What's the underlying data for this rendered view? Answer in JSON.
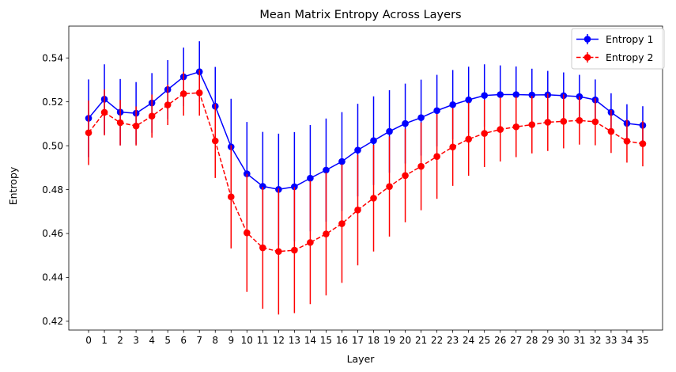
{
  "chart_data": {
    "type": "line",
    "title": "Mean Matrix Entropy Across Layers",
    "xlabel": "Layer",
    "ylabel": "Entropy",
    "ylim": [
      0.416,
      0.5545
    ],
    "yticks": [
      0.42,
      0.44,
      0.46,
      0.48,
      0.5,
      0.52,
      0.54
    ],
    "ytick_labels": [
      "0.42",
      "0.44",
      "0.46",
      "0.48",
      "0.50",
      "0.52",
      "0.54"
    ],
    "x": [
      0,
      1,
      2,
      3,
      4,
      5,
      6,
      7,
      8,
      9,
      10,
      11,
      12,
      13,
      14,
      15,
      16,
      17,
      18,
      19,
      20,
      21,
      22,
      23,
      24,
      25,
      26,
      27,
      28,
      29,
      30,
      31,
      32,
      33,
      34,
      35
    ],
    "xtick_labels": [
      "0",
      "1",
      "2",
      "3",
      "4",
      "5",
      "6",
      "7",
      "8",
      "9",
      "10",
      "11",
      "12",
      "13",
      "14",
      "15",
      "16",
      "17",
      "18",
      "19",
      "20",
      "21",
      "22",
      "23",
      "24",
      "25",
      "26",
      "27",
      "28",
      "29",
      "30",
      "31",
      "32",
      "33",
      "34",
      "35"
    ],
    "grid": false,
    "legend_position": "top-right",
    "series": [
      {
        "name": "Entropy 1",
        "color": "#0000ff",
        "linestyle": "solid",
        "values": [
          0.5125,
          0.5212,
          0.5153,
          0.5148,
          0.5195,
          0.5256,
          0.5314,
          0.5337,
          0.518,
          0.4995,
          0.4872,
          0.4815,
          0.4801,
          0.4813,
          0.4852,
          0.4889,
          0.4928,
          0.498,
          0.5023,
          0.5065,
          0.5101,
          0.5128,
          0.516,
          0.5187,
          0.5209,
          0.5229,
          0.5233,
          0.5233,
          0.5231,
          0.5232,
          0.5228,
          0.5224,
          0.5209,
          0.5152,
          0.5102,
          0.5093
        ],
        "errors": [
          0.0177,
          0.0159,
          0.0151,
          0.0142,
          0.0136,
          0.0134,
          0.0133,
          0.0139,
          0.0179,
          0.0219,
          0.0236,
          0.0248,
          0.0254,
          0.0249,
          0.0242,
          0.0235,
          0.0225,
          0.0211,
          0.0202,
          0.0188,
          0.0182,
          0.0173,
          0.0163,
          0.0158,
          0.0151,
          0.0142,
          0.0133,
          0.0128,
          0.012,
          0.0109,
          0.0106,
          0.0099,
          0.0093,
          0.0087,
          0.0087,
          0.0087
        ]
      },
      {
        "name": "Entropy 2",
        "color": "#ff0000",
        "linestyle": "dashed",
        "values": [
          0.5059,
          0.5152,
          0.5105,
          0.509,
          0.5135,
          0.5186,
          0.5237,
          0.5241,
          0.5022,
          0.4767,
          0.4603,
          0.4535,
          0.4518,
          0.4524,
          0.4559,
          0.4598,
          0.4645,
          0.4707,
          0.4761,
          0.4814,
          0.4864,
          0.4906,
          0.4951,
          0.4994,
          0.503,
          0.5056,
          0.5074,
          0.5086,
          0.5096,
          0.5107,
          0.5111,
          0.5115,
          0.5109,
          0.5065,
          0.5021,
          0.5009
        ],
        "errors": [
          0.0147,
          0.0105,
          0.0104,
          0.0089,
          0.0098,
          0.0092,
          0.01,
          0.0104,
          0.0169,
          0.0235,
          0.0269,
          0.0278,
          0.0287,
          0.0287,
          0.0281,
          0.028,
          0.027,
          0.0252,
          0.0243,
          0.0228,
          0.0213,
          0.02,
          0.0193,
          0.0177,
          0.0167,
          0.0153,
          0.0146,
          0.0138,
          0.0131,
          0.0131,
          0.0123,
          0.011,
          0.0107,
          0.0098,
          0.0098,
          0.0103
        ]
      }
    ]
  }
}
